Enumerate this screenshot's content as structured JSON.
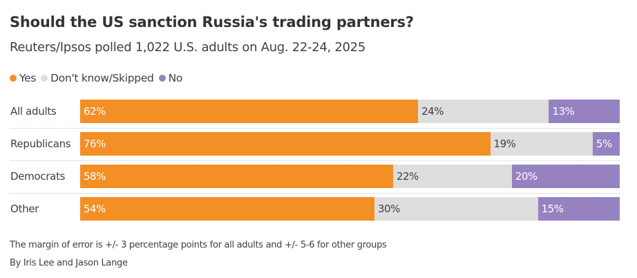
{
  "header": {
    "title": "Should the US sanction Russia's trading partners?",
    "subtitle": "Reuters/Ipsos polled 1,022 U.S. adults on Aug. 22-24, 2025"
  },
  "legend": [
    {
      "label": "Yes",
      "color": "#f28f25"
    },
    {
      "label": "Don't know/Skipped",
      "color": "#dedede"
    },
    {
      "label": "No",
      "color": "#9682c0"
    }
  ],
  "rows": [
    {
      "label": "All adults",
      "yes": "62%",
      "dk": "24%",
      "no": "13%"
    },
    {
      "label": "Republicans",
      "yes": "76%",
      "dk": "19%",
      "no": "5%"
    },
    {
      "label": "Democrats",
      "yes": "58%",
      "dk": "22%",
      "no": "20%"
    },
    {
      "label": "Other",
      "yes": "54%",
      "dk": "30%",
      "no": "15%"
    }
  ],
  "footer": {
    "note": "The margin of error is +/- 3 percentage points for all adults and +/- 5-6 for other groups",
    "byline": "By Iris Lee and Jason Lange"
  },
  "chart_data": {
    "type": "bar",
    "orientation": "horizontal",
    "stacked": true,
    "title": "Should the US sanction Russia's trading partners?",
    "subtitle": "Reuters/Ipsos polled 1,022 U.S. adults on Aug. 22-24, 2025",
    "categories": [
      "All adults",
      "Republicans",
      "Democrats",
      "Other"
    ],
    "series": [
      {
        "name": "Yes",
        "color": "#f28f25",
        "values": [
          62,
          76,
          58,
          54
        ]
      },
      {
        "name": "Don't know/Skipped",
        "color": "#dedede",
        "values": [
          24,
          19,
          22,
          30
        ]
      },
      {
        "name": "No",
        "color": "#9682c0",
        "values": [
          13,
          5,
          20,
          15
        ]
      }
    ],
    "xlabel": "",
    "ylabel": "",
    "unit": "%",
    "legend_position": "top-left",
    "grid": false,
    "annotations": [
      "The margin of error is +/- 3 percentage points for all adults and +/- 5-6 for other groups",
      "By Iris Lee and Jason Lange"
    ]
  }
}
